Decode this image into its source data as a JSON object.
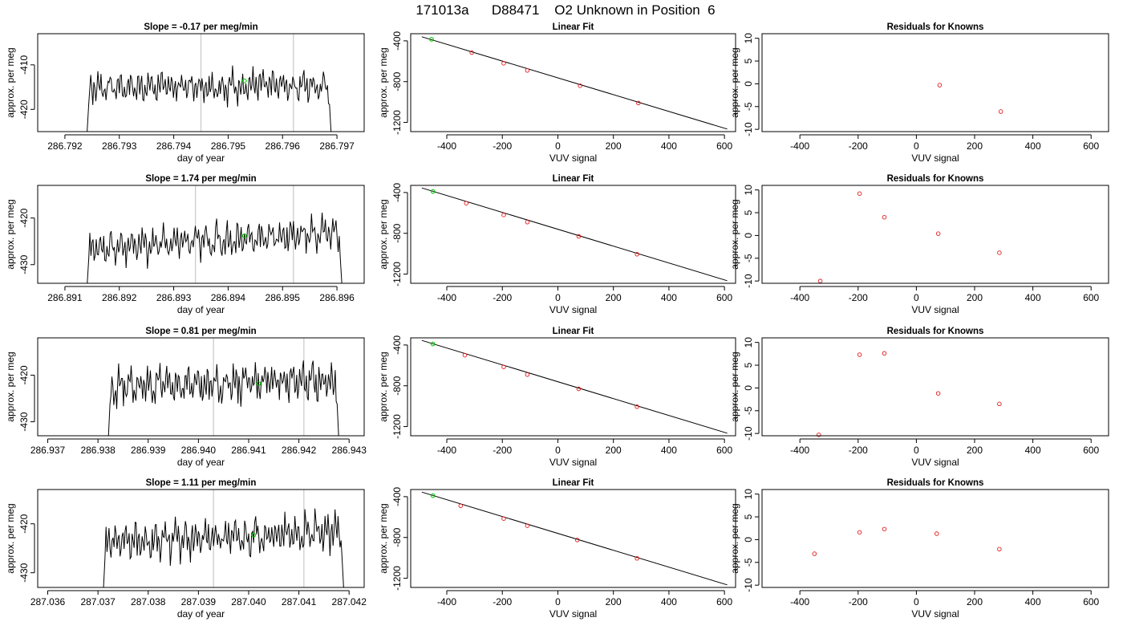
{
  "figure_title": "171013a      D88471    O2 Unknown in Position  6",
  "colors": {
    "line": "#000000",
    "axis": "#000000",
    "gridline": "#c8c8c8",
    "known_point": "#e41a1c",
    "highlight_point": "#00cc00"
  },
  "chart_data": [
    {
      "type": "line",
      "title": "Slope =  -0.17  per meg/min",
      "xlabel": "day of year",
      "ylabel": "approx. per meg",
      "xlim": [
        286.7915,
        286.7975
      ],
      "ylim": [
        -425,
        -403
      ],
      "xticks": [
        "286.792",
        "286.793",
        "286.794",
        "286.795",
        "286.796",
        "286.797"
      ],
      "yticks": [
        "-410",
        "-420"
      ],
      "start_x": 286.7924,
      "end_x": 286.7969,
      "mean": -414.8,
      "amplitude": 2.1,
      "drift": 0.4,
      "vlines": [
        286.7945,
        286.7962
      ],
      "highlight": {
        "x": 286.7953,
        "y": -413.6
      }
    },
    {
      "type": "scatter",
      "title": "Linear Fit",
      "xlabel": "VUV signal",
      "ylabel": "approx. per meg",
      "xlim": [
        -530,
        640
      ],
      "ylim": [
        -1290,
        -330
      ],
      "xticks": [
        "-400",
        "-200",
        "0",
        "200",
        "400",
        "600"
      ],
      "yticks": [
        "-400",
        "-800",
        "-1200"
      ],
      "fit_line": {
        "x": [
          -490,
          610
        ],
        "y": [
          -360,
          -1265
        ]
      },
      "points": [
        {
          "x": 80,
          "y": -840
        },
        {
          "x": -310,
          "y": -515
        },
        {
          "x": -195,
          "y": -620
        },
        {
          "x": -110,
          "y": -690
        },
        {
          "x": 290,
          "y": -1010
        }
      ],
      "highlight": {
        "x": -455,
        "y": -385
      }
    },
    {
      "type": "scatter",
      "title": "Residuals for Knowns",
      "xlabel": "VUV signal",
      "ylabel": "approx. per meg",
      "xlim": [
        -530,
        660
      ],
      "ylim": [
        -10.5,
        11
      ],
      "xticks": [
        "-400",
        "-200",
        "0",
        "200",
        "400",
        "600"
      ],
      "yticks": [
        "10",
        "5",
        "0",
        "-5",
        "-10"
      ],
      "points": [
        {
          "x": 80,
          "y": -0.3
        },
        {
          "x": 290,
          "y": -6.1
        }
      ]
    },
    {
      "type": "line",
      "title": "Slope =  1.74  per meg/min",
      "xlabel": "day of year",
      "ylabel": "approx. per meg",
      "xlim": [
        286.8905,
        286.8965
      ],
      "ylim": [
        -434,
        -413
      ],
      "xticks": [
        "286.891",
        "286.892",
        "286.893",
        "286.894",
        "286.895",
        "286.896"
      ],
      "yticks": [
        "-420",
        "-430"
      ],
      "start_x": 286.8914,
      "end_x": 286.8961,
      "mean": -424.8,
      "amplitude": 2.2,
      "drift": 3.5,
      "vlines": [
        286.8934,
        286.8952
      ],
      "highlight": {
        "x": 286.8943,
        "y": -423.8
      }
    },
    {
      "type": "scatter",
      "title": "Linear Fit",
      "xlabel": "VUV signal",
      "ylabel": "approx. per meg",
      "xlim": [
        -530,
        640
      ],
      "ylim": [
        -1290,
        -330
      ],
      "xticks": [
        "-400",
        "-200",
        "0",
        "200",
        "400",
        "600"
      ],
      "yticks": [
        "-400",
        "-800",
        "-1200"
      ],
      "fit_line": {
        "x": [
          -490,
          610
        ],
        "y": [
          -355,
          -1265
        ]
      },
      "points": [
        {
          "x": 75,
          "y": -830
        },
        {
          "x": -330,
          "y": -505
        },
        {
          "x": -195,
          "y": -620
        },
        {
          "x": -110,
          "y": -690
        },
        {
          "x": 285,
          "y": -1005
        }
      ],
      "highlight": {
        "x": -450,
        "y": -390
      }
    },
    {
      "type": "scatter",
      "title": "Residuals for Knowns",
      "xlabel": "VUV signal",
      "ylabel": "approx. per meg",
      "xlim": [
        -530,
        660
      ],
      "ylim": [
        -10.5,
        11
      ],
      "xticks": [
        "-400",
        "-200",
        "0",
        "200",
        "400",
        "600"
      ],
      "yticks": [
        "10",
        "5",
        "0",
        "-5",
        "-10"
      ],
      "points": [
        {
          "x": -330,
          "y": -10
        },
        {
          "x": -195,
          "y": 9.2
        },
        {
          "x": -110,
          "y": 4
        },
        {
          "x": 75,
          "y": 0.4
        },
        {
          "x": 285,
          "y": -3.8
        }
      ]
    },
    {
      "type": "line",
      "title": "Slope =  0.81  per meg/min",
      "xlabel": "day of year",
      "ylabel": "approx. per meg",
      "xlim": [
        286.9368,
        286.9433
      ],
      "ylim": [
        -433,
        -412
      ],
      "xticks": [
        "286.937",
        "286.938",
        "286.939",
        "286.940",
        "286.941",
        "286.942",
        "286.943"
      ],
      "yticks": [
        "-420",
        "-430"
      ],
      "start_x": 286.9382,
      "end_x": 286.9428,
      "mean": -421.8,
      "amplitude": 2.4,
      "drift": 1.5,
      "vlines": [
        286.9403,
        286.9421
      ],
      "highlight": {
        "x": 286.9412,
        "y": -421.8
      }
    },
    {
      "type": "scatter",
      "title": "Linear Fit",
      "xlabel": "VUV signal",
      "ylabel": "approx. per meg",
      "xlim": [
        -530,
        640
      ],
      "ylim": [
        -1290,
        -330
      ],
      "xticks": [
        "-400",
        "-200",
        "0",
        "200",
        "400",
        "600"
      ],
      "yticks": [
        "-400",
        "-800",
        "-1200"
      ],
      "fit_line": {
        "x": [
          -490,
          610
        ],
        "y": [
          -355,
          -1265
        ]
      },
      "points": [
        {
          "x": 75,
          "y": -830
        },
        {
          "x": -335,
          "y": -500
        },
        {
          "x": -195,
          "y": -615
        },
        {
          "x": -110,
          "y": -690
        },
        {
          "x": 285,
          "y": -1005
        }
      ],
      "highlight": {
        "x": -450,
        "y": -390
      }
    },
    {
      "type": "scatter",
      "title": "Residuals for Knowns",
      "xlabel": "VUV signal",
      "ylabel": "approx. per meg",
      "xlim": [
        -530,
        660
      ],
      "ylim": [
        -10.5,
        11
      ],
      "xticks": [
        "-400",
        "-200",
        "0",
        "200",
        "400",
        "600"
      ],
      "yticks": [
        "10",
        "5",
        "0",
        "-5",
        "-10"
      ],
      "points": [
        {
          "x": -335,
          "y": -10.3
        },
        {
          "x": -195,
          "y": 7.3
        },
        {
          "x": -110,
          "y": 7.6
        },
        {
          "x": 75,
          "y": -1.2
        },
        {
          "x": 285,
          "y": -3.5
        }
      ]
    },
    {
      "type": "line",
      "title": "Slope =  1.11  per meg/min",
      "xlabel": "day of year",
      "ylabel": "approx. per meg",
      "xlim": [
        287.0358,
        287.0423
      ],
      "ylim": [
        -433,
        -413
      ],
      "xticks": [
        "287.036",
        "287.037",
        "287.038",
        "287.039",
        "287.040",
        "287.041",
        "287.042"
      ],
      "yticks": [
        "-420",
        "-430"
      ],
      "start_x": 287.0371,
      "end_x": 287.0419,
      "mean": -422.8,
      "amplitude": 2.3,
      "drift": 2.0,
      "vlines": [
        287.0393,
        287.0411
      ],
      "highlight": {
        "x": 287.0401,
        "y": -422.3
      }
    },
    {
      "type": "scatter",
      "title": "Linear Fit",
      "xlabel": "VUV signal",
      "ylabel": "approx. per meg",
      "xlim": [
        -530,
        640
      ],
      "ylim": [
        -1290,
        -330
      ],
      "xticks": [
        "-400",
        "-200",
        "0",
        "200",
        "400",
        "600"
      ],
      "yticks": [
        "-400",
        "-800",
        "-1200"
      ],
      "fit_line": {
        "x": [
          -490,
          610
        ],
        "y": [
          -355,
          -1265
        ]
      },
      "points": [
        {
          "x": 70,
          "y": -825
        },
        {
          "x": -350,
          "y": -490
        },
        {
          "x": -195,
          "y": -615
        },
        {
          "x": -110,
          "y": -685
        },
        {
          "x": 285,
          "y": -1005
        }
      ],
      "highlight": {
        "x": -450,
        "y": -390
      }
    },
    {
      "type": "scatter",
      "title": "Residuals for Knowns",
      "xlabel": "VUV signal",
      "ylabel": "approx. per meg",
      "xlim": [
        -530,
        660
      ],
      "ylim": [
        -10.5,
        11
      ],
      "xticks": [
        "-400",
        "-200",
        "0",
        "200",
        "400",
        "600"
      ],
      "yticks": [
        "10",
        "5",
        "0",
        "-5",
        "-10"
      ],
      "points": [
        {
          "x": -350,
          "y": -3.1
        },
        {
          "x": -195,
          "y": 1.6
        },
        {
          "x": -110,
          "y": 2.3
        },
        {
          "x": 70,
          "y": 1.3
        },
        {
          "x": 285,
          "y": -2.1
        }
      ]
    }
  ]
}
